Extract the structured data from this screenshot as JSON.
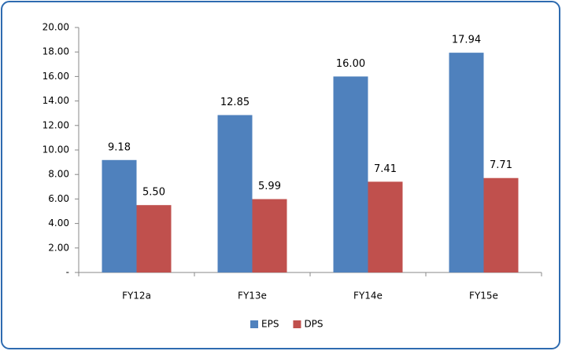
{
  "chart_data": {
    "type": "bar",
    "categories": [
      "FY12a",
      "FY13e",
      "FY14e",
      "FY15e"
    ],
    "series": [
      {
        "name": "EPS",
        "color": "#4f81bd",
        "values": [
          9.18,
          12.85,
          16.0,
          17.94
        ],
        "value_labels": [
          "9.18",
          "12.85",
          "16.00",
          "17.94"
        ]
      },
      {
        "name": "DPS",
        "color": "#c0504d",
        "values": [
          5.5,
          5.99,
          7.41,
          7.71
        ],
        "value_labels": [
          "5.50",
          "5.99",
          "7.41",
          "7.71"
        ]
      }
    ],
    "ylim": [
      0,
      20
    ],
    "yticks": [
      {
        "value": 0,
        "label": "-"
      },
      {
        "value": 2,
        "label": "2.00"
      },
      {
        "value": 4,
        "label": "4.00"
      },
      {
        "value": 6,
        "label": "6.00"
      },
      {
        "value": 8,
        "label": "8.00"
      },
      {
        "value": 10,
        "label": "10.00"
      },
      {
        "value": 12,
        "label": "12.00"
      },
      {
        "value": 14,
        "label": "14.00"
      },
      {
        "value": 16,
        "label": "16.00"
      },
      {
        "value": 18,
        "label": "18.00"
      },
      {
        "value": 20,
        "label": "20.00"
      }
    ],
    "grid": false,
    "legend": "bottom"
  }
}
